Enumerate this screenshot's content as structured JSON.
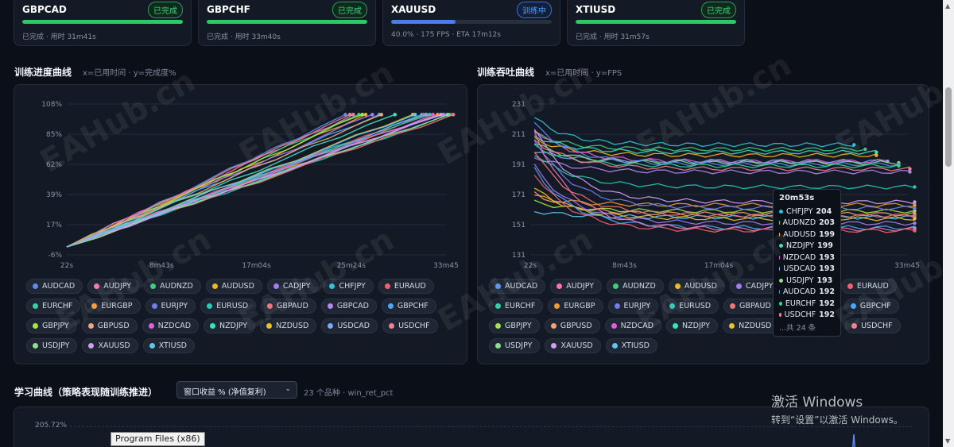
{
  "cards": [
    {
      "symbol": "GBPCAD",
      "status": "已完成",
      "meta": "已完成 · 用时 31m41s",
      "progress": 1.0,
      "running": false
    },
    {
      "symbol": "GBPCHF",
      "status": "已完成",
      "meta": "已完成 · 用时 33m40s",
      "progress": 1.0,
      "running": false
    },
    {
      "symbol": "XAUUSD",
      "status": "训练中",
      "meta": "40.0% · 175 FPS · ETA 17m12s",
      "progress": 0.4,
      "running": true
    },
    {
      "symbol": "XTIUSD",
      "status": "已完成",
      "meta": "已完成 · 用时 31m57s",
      "progress": 1.0,
      "running": false
    }
  ],
  "progress_section": {
    "title": "训练进度曲线",
    "subtitle": "x=已用时间 · y=完成度%"
  },
  "fps_section": {
    "title": "训练吞吐曲线",
    "subtitle": "x=已用时间 · y=FPS"
  },
  "learning_section": {
    "title": "学习曲线（策略表现随训练推进）",
    "select_value": "窗口收益 % (净值复利)",
    "select_icon": "chevron-down-icon",
    "subtitle": "23 个品种 · win_ret_pct",
    "y_top_label": "205.72%"
  },
  "symbols": [
    {
      "name": "AUDCAD",
      "color": "#5b8def"
    },
    {
      "name": "AUDJPY",
      "color": "#f277b4"
    },
    {
      "name": "AUDNZD",
      "color": "#3fcf7a"
    },
    {
      "name": "AUDUSD",
      "color": "#f2b51e"
    },
    {
      "name": "CADJPY",
      "color": "#a57bf0"
    },
    {
      "name": "CHFJPY",
      "color": "#2ec4d6"
    },
    {
      "name": "EURAUD",
      "color": "#f06070"
    },
    {
      "name": "EURCHF",
      "color": "#2fd4a0"
    },
    {
      "name": "EURGBP",
      "color": "#f59a2a"
    },
    {
      "name": "EURJPY",
      "color": "#6f7df2"
    },
    {
      "name": "EURUSD",
      "color": "#27c9b8"
    },
    {
      "name": "GBPAUD",
      "color": "#f0757a"
    },
    {
      "name": "GBPCAD",
      "color": "#b287f0"
    },
    {
      "name": "GBPCHF",
      "color": "#4aa8f5"
    },
    {
      "name": "GBPJPY",
      "color": "#a6e34a"
    },
    {
      "name": "GBPUSD",
      "color": "#f0a578"
    },
    {
      "name": "NZDCAD",
      "color": "#e060d8"
    },
    {
      "name": "NZDJPY",
      "color": "#3fe0c0"
    },
    {
      "name": "NZDUSD",
      "color": "#e8c030"
    },
    {
      "name": "USDCAD",
      "color": "#7fa8f0"
    },
    {
      "name": "USDCHF",
      "color": "#f07f90"
    },
    {
      "name": "USDJPY",
      "color": "#8ee08a"
    },
    {
      "name": "XAUUSD",
      "color": "#d29cf7"
    },
    {
      "name": "XTIUSD",
      "color": "#5fc6f0"
    }
  ],
  "tooltip": {
    "title": "20m53s",
    "rows": [
      {
        "name": "CHFJPY",
        "value": "204",
        "color": "#2ec4d6"
      },
      {
        "name": "AUDNZD",
        "value": "203",
        "color": "#3fcf7a"
      },
      {
        "name": "AUDUSD",
        "value": "199",
        "color": "#f2b51e"
      },
      {
        "name": "NZDJPY",
        "value": "199",
        "color": "#3fe0c0"
      },
      {
        "name": "NZDCAD",
        "value": "193",
        "color": "#e060d8"
      },
      {
        "name": "USDCAD",
        "value": "193",
        "color": "#7fa8f0"
      },
      {
        "name": "USDJPY",
        "value": "193",
        "color": "#8ee08a"
      },
      {
        "name": "AUDCAD",
        "value": "192",
        "color": "#5b8def"
      },
      {
        "name": "EURCHF",
        "value": "192",
        "color": "#2fd4a0"
      },
      {
        "name": "USDCHF",
        "value": "192",
        "color": "#f07f90"
      }
    ],
    "more": "...共 24 条"
  },
  "watermark": "EAHub.cn",
  "windows": {
    "activate_title": "激活 Windows",
    "activate_sub": "转到“设置”以激活 Windows。"
  },
  "os_tooltip": "Program Files (x86)",
  "chart_data": [
    {
      "type": "line",
      "title": "训练进度曲线",
      "xlabel": "x=已用时间",
      "ylabel": "y=完成度%",
      "x_ticks": [
        "22s",
        "8m43s",
        "17m04s",
        "25m24s",
        "33m45"
      ],
      "y_ticks": [
        "108%",
        "85%",
        "62%",
        "39%",
        "17%",
        "-6%"
      ],
      "ylim": [
        -6,
        108
      ],
      "series_end_minutes": [
        24.8,
        25.5,
        26.0,
        26.6,
        27.2,
        31.6,
        31.8,
        32.3,
        33.0,
        33.6,
        34.1,
        34.4,
        33.5,
        27.8,
        26.3,
        28.0,
        32.6,
        29.2,
        30.8,
        32.0,
        25.2,
        33.9,
        33.3,
        31.0
      ],
      "start": [
        0.37,
        0
      ],
      "end_value": 100
    },
    {
      "type": "line",
      "title": "训练吞吐曲线",
      "xlabel": "x=已用时间",
      "ylabel": "y=FPS",
      "x_ticks": [
        "22s",
        "8m43s",
        "17m04s",
        "25m24s",
        "33m45"
      ],
      "y_ticks": [
        "231",
        "211",
        "191",
        "171",
        "151",
        "131"
      ],
      "ylim": [
        131,
        231
      ],
      "series": [
        {
          "name": "CHFJPY",
          "start": 222,
          "level": 204,
          "end_minutes": 29
        },
        {
          "name": "AUDNZD",
          "start": 212,
          "level": 201,
          "end_minutes": 30
        },
        {
          "name": "AUDUSD",
          "start": 208,
          "level": 197,
          "end_minutes": 31
        },
        {
          "name": "NZDJPY",
          "start": 210,
          "level": 199,
          "end_minutes": 31
        },
        {
          "name": "NZDCAD",
          "start": 214,
          "level": 193,
          "end_minutes": 32
        },
        {
          "name": "USDCAD",
          "start": 200,
          "level": 193,
          "end_minutes": 32
        },
        {
          "name": "USDJPY",
          "start": 205,
          "level": 192,
          "end_minutes": 33
        },
        {
          "name": "AUDCAD",
          "start": 218,
          "level": 191,
          "end_minutes": 33
        },
        {
          "name": "EURCHF",
          "start": 203,
          "level": 190,
          "end_minutes": 33
        },
        {
          "name": "USDCHF",
          "start": 207,
          "level": 188,
          "end_minutes": 34
        },
        {
          "name": "GBPCAD",
          "start": 196,
          "level": 186,
          "end_minutes": 34
        },
        {
          "name": "EURUSD",
          "start": 198,
          "level": 176,
          "end_minutes": 36
        },
        {
          "name": "XAUUSD",
          "start": 215,
          "level": 166,
          "end_minutes": 36
        },
        {
          "name": "EURGBP",
          "start": 170,
          "level": 164,
          "end_minutes": 38
        },
        {
          "name": "GBPJPY",
          "start": 166,
          "level": 160,
          "end_minutes": 38
        },
        {
          "name": "GBPUSD",
          "start": 172,
          "level": 158,
          "end_minutes": 38
        },
        {
          "name": "XTIUSD",
          "start": 160,
          "level": 156,
          "end_minutes": 39
        },
        {
          "name": "EURJPY",
          "start": 208,
          "level": 162,
          "end_minutes": 39
        },
        {
          "name": "GBPAUD",
          "start": 200,
          "level": 157,
          "end_minutes": 40
        },
        {
          "name": "NZDUSD",
          "start": 175,
          "level": 155,
          "end_minutes": 40
        },
        {
          "name": "CADJPY",
          "start": 190,
          "level": 152,
          "end_minutes": 41
        },
        {
          "name": "GBPCHF",
          "start": 188,
          "level": 149,
          "end_minutes": 41
        },
        {
          "name": "AUDJPY",
          "start": 213,
          "level": 148,
          "end_minutes": 42
        },
        {
          "name": "EURAUD",
          "start": 185,
          "level": 147,
          "end_minutes": 42
        }
      ]
    }
  ]
}
